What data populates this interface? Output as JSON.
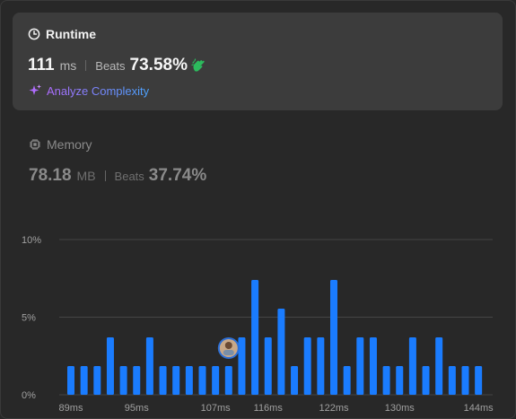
{
  "runtime": {
    "title": "Runtime",
    "value": "111",
    "unit": "ms",
    "beats_label": "Beats",
    "beats_value": "73.58%",
    "analyze_label": "Analyze Complexity"
  },
  "memory": {
    "title": "Memory",
    "value": "78.18",
    "unit": "MB",
    "beats_label": "Beats",
    "beats_value": "37.74%"
  },
  "colors": {
    "bar": "#1a7cff",
    "clap": "#2cbb5d",
    "accent_purple": "#b06cff"
  },
  "icons": {
    "runtime": "clock-icon",
    "memory": "chip-icon",
    "beats": "clap-icon",
    "analyze": "sparkle-icon",
    "marker": "avatar"
  },
  "chart_data": {
    "type": "bar",
    "y_ticks": [
      "0%",
      "5%",
      "10%"
    ],
    "ylim": [
      0,
      10
    ],
    "x_tick_labels": [
      "89ms",
      "95ms",
      "107ms",
      "116ms",
      "122ms",
      "130ms",
      "144ms"
    ],
    "values": [
      1.85,
      1.85,
      1.85,
      3.7,
      1.85,
      1.85,
      3.7,
      1.85,
      1.85,
      1.85,
      1.85,
      1.85,
      1.85,
      3.7,
      7.4,
      3.7,
      5.55,
      1.85,
      3.7,
      3.7,
      7.4,
      1.85,
      3.7,
      3.7,
      1.85,
      1.85,
      3.7,
      1.85,
      3.7,
      1.85,
      1.85,
      1.85
    ],
    "highlight_index": 12,
    "highlight_label": "111ms"
  }
}
